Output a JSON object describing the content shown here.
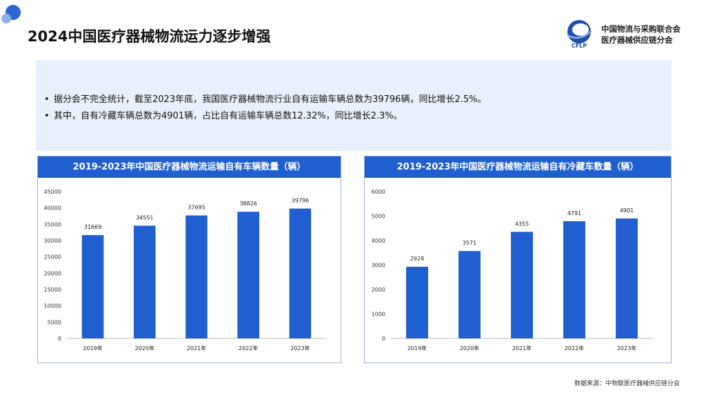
{
  "page": {
    "title": "2024中国医疗器械物流运力逐步增强",
    "source": "数据来源：中物联医疗器械供应链分会"
  },
  "logo": {
    "line1": "中国物流与采购联合会",
    "line2": "医疗器械供应链分会",
    "abbr": "CFLP"
  },
  "summary": {
    "bullets": [
      "据分会不完全统计，截至2023年底，我国医疗器械物流行业自有运输车辆总数为39796辆，同比增长2.5%。",
      "其中，自有冷藏车辆总数为4901辆，占比自有运输车辆总数12.32%，同比增长2.3%。"
    ]
  },
  "colors": {
    "bar": "#1f5fcf",
    "header": "#1f5fcf",
    "summary_bg": "#e8f1fb"
  },
  "chart_data": [
    {
      "type": "bar",
      "title": "2019-2023年中国医疗器械物流运输自有车辆数量（辆）",
      "categories": [
        "2019年",
        "2020年",
        "2021年",
        "2022年",
        "2023年"
      ],
      "values": [
        31669,
        34551,
        37695,
        38826,
        39796
      ],
      "ylim": [
        0,
        45000
      ],
      "yticks": [
        "0",
        "5000",
        "10000",
        "15000",
        "20000",
        "25000",
        "30000",
        "35000",
        "40000",
        "45000"
      ],
      "grid": false
    },
    {
      "type": "bar",
      "title": "2019-2023年中国医疗器械物流运输自有冷藏车数量（辆）",
      "categories": [
        "2019年",
        "2020年",
        "2021年",
        "2022年",
        "2023年"
      ],
      "values": [
        2928,
        3571,
        4355,
        4791,
        4901
      ],
      "ylim": [
        0,
        6000
      ],
      "yticks": [
        "0",
        "1000",
        "2000",
        "3000",
        "4000",
        "5000",
        "6000"
      ],
      "grid": false
    }
  ]
}
